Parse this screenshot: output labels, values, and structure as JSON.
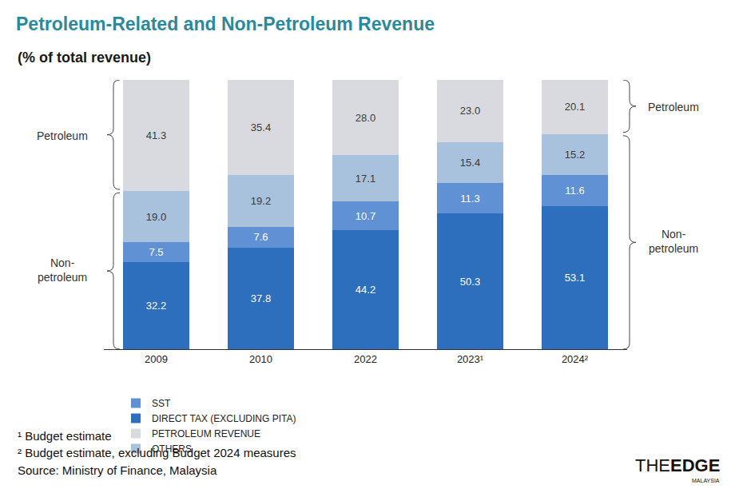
{
  "chart_data": {
    "type": "bar",
    "title": "Petroleum-Related and Non-Petroleum Revenue",
    "subtitle": "(% of total revenue)",
    "stacked": true,
    "data_labels": true,
    "grid": false,
    "tick_labels": "x",
    "legend": "bottom",
    "categories": [
      "2009",
      "2010",
      "2022",
      "2023¹",
      "2024²"
    ],
    "ylim": [
      0,
      100
    ],
    "yticks": [],
    "series": [
      {
        "name": "DIRECT TAX (EXCLUDING PITA)",
        "color": "#2e6fbd",
        "values": [
          32.2,
          37.8,
          44.2,
          50.3,
          53.1
        ],
        "value_labels": [
          "32.2",
          "37.8",
          "44.2",
          "50.3",
          "53.1"
        ]
      },
      {
        "name": "SST",
        "color": "#5f91d4",
        "values": [
          7.5,
          7.6,
          10.7,
          11.3,
          11.6
        ],
        "value_labels": [
          "7.5",
          "7.6",
          "10.7",
          "11.3",
          "11.6"
        ]
      },
      {
        "name": "OTHERS",
        "color": "#a8c1dc",
        "values": [
          19.0,
          19.2,
          17.1,
          15.4,
          15.2
        ],
        "value_labels": [
          "19.0",
          "19.2",
          "17.1",
          "15.4",
          "15.2"
        ]
      },
      {
        "name": "PETROLEUM REVENUE",
        "color": "#d9dadf",
        "values": [
          41.3,
          35.4,
          28.0,
          23.0,
          20.1
        ],
        "value_labels": [
          "41.3",
          "35.4",
          "28.0",
          "23.0",
          "20.1"
        ]
      }
    ],
    "annotations": [
      {
        "text": "Petroleum",
        "side": "left"
      },
      {
        "text": "Non-\npetroleum",
        "side": "left"
      },
      {
        "text": "Petroleum",
        "side": "right"
      },
      {
        "text": "Non-\npetroleum",
        "side": "right"
      }
    ],
    "notes": [
      "¹ Budget estimate",
      "² Budget estimate, excluding Budget 2024 measures",
      "Source: Ministry of Finance, Malaysia"
    ],
    "logo": {
      "prefix": "THE",
      "main": "EDGE",
      "sub": "MALAYSIA"
    }
  }
}
